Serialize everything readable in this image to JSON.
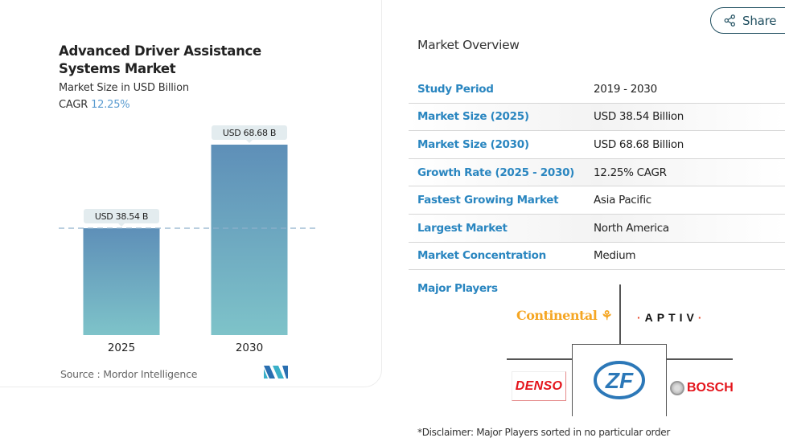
{
  "chart_card": {
    "title": "Advanced Driver Assistance Systems Market",
    "subtitle": "Market Size in USD Billion",
    "cagr_label": "CAGR",
    "cagr_value": "12.25%",
    "source": "Source :  Mordor Intelligence",
    "logo_icon": "mordor-intelligence-logo",
    "colors": {
      "bar_top": "#5e8fb8",
      "bar_bottom": "#7ec3c9",
      "cagr": "#5a9bd0",
      "dashed_line": "#8fb0cc",
      "label_bg": "#e3ecef"
    }
  },
  "chart_data": {
    "type": "bar",
    "title": "Advanced Driver Assistance Systems Market",
    "ylabel": "Market Size in USD Billion",
    "xlabel": "",
    "categories": [
      "2025",
      "2030"
    ],
    "values": [
      38.54,
      68.68
    ],
    "data_labels": [
      "USD 38.54 B",
      "USD 68.68 B"
    ],
    "ylim": [
      0,
      70
    ],
    "grid": false,
    "reference_line": 38.54,
    "legend": "none"
  },
  "share": {
    "label": "Share",
    "icon": "share-icon"
  },
  "overview": {
    "title": "Market Overview",
    "rows": [
      {
        "key": "Study Period",
        "value": "2019 - 2030"
      },
      {
        "key": "Market Size (2025)",
        "value": "USD 38.54 Billion"
      },
      {
        "key": "Market Size (2030)",
        "value": "USD 68.68 Billion"
      },
      {
        "key": "Growth Rate (2025 - 2030)",
        "value": "12.25% CAGR"
      },
      {
        "key": "Fastest Growing Market",
        "value": "Asia Pacific"
      },
      {
        "key": "Largest Market",
        "value": "North America"
      },
      {
        "key": "Market Concentration",
        "value": "Medium"
      }
    ],
    "major_players_label": "Major Players",
    "major_players": [
      "Continental",
      "APTIV",
      "DENSO",
      "ZF",
      "BOSCH"
    ],
    "disclaimer": "*Disclaimer: Major Players sorted in no particular order",
    "colors": {
      "key": "#2a86c0"
    }
  }
}
